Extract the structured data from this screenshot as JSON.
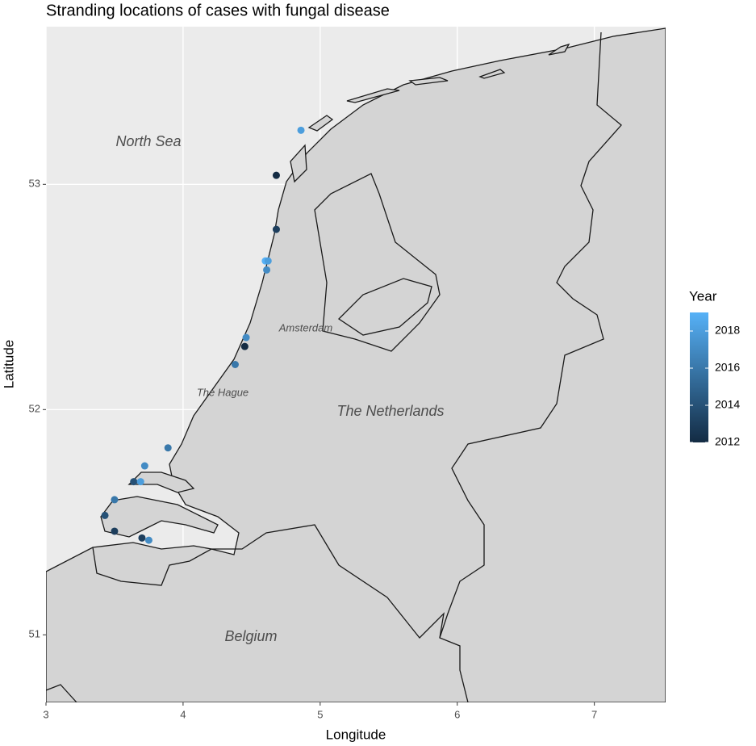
{
  "chart_data": {
    "type": "scatter",
    "title": "Stranding locations of cases with fungal disease",
    "xlabel": "Longitude",
    "ylabel": "Latitude",
    "xlim": [
      3,
      7.52
    ],
    "ylim": [
      50.7,
      53.7
    ],
    "xticks": [
      3,
      4,
      5,
      6,
      7
    ],
    "yticks": [
      51,
      52,
      53
    ],
    "grid": true,
    "annotations": [
      "North Sea",
      "Amsterdam",
      "The Hague",
      "The Netherlands",
      "Belgium"
    ],
    "points": {
      "x": [
        4.86,
        4.68,
        4.68,
        4.6,
        4.62,
        4.61,
        4.46,
        4.45,
        4.38,
        3.89,
        3.72,
        3.64,
        3.69,
        3.5,
        3.43,
        3.5,
        3.7,
        3.75
      ],
      "y": [
        53.24,
        53.04,
        52.8,
        52.66,
        52.66,
        52.62,
        52.32,
        52.28,
        52.2,
        51.83,
        51.75,
        51.68,
        51.68,
        51.6,
        51.53,
        51.46,
        51.43,
        51.42
      ],
      "year": [
        2018,
        2012,
        2013,
        2019,
        2018,
        2017,
        2017,
        2012,
        2016,
        2016,
        2017,
        2014,
        2018,
        2016,
        2014,
        2013,
        2013,
        2017
      ]
    },
    "legend": {
      "title": "Year",
      "low_color": "#132B43",
      "high_color": "#56B1F7",
      "lim": [
        2012,
        2019
      ],
      "ticks": [
        2012,
        2014,
        2016,
        2018
      ]
    }
  }
}
